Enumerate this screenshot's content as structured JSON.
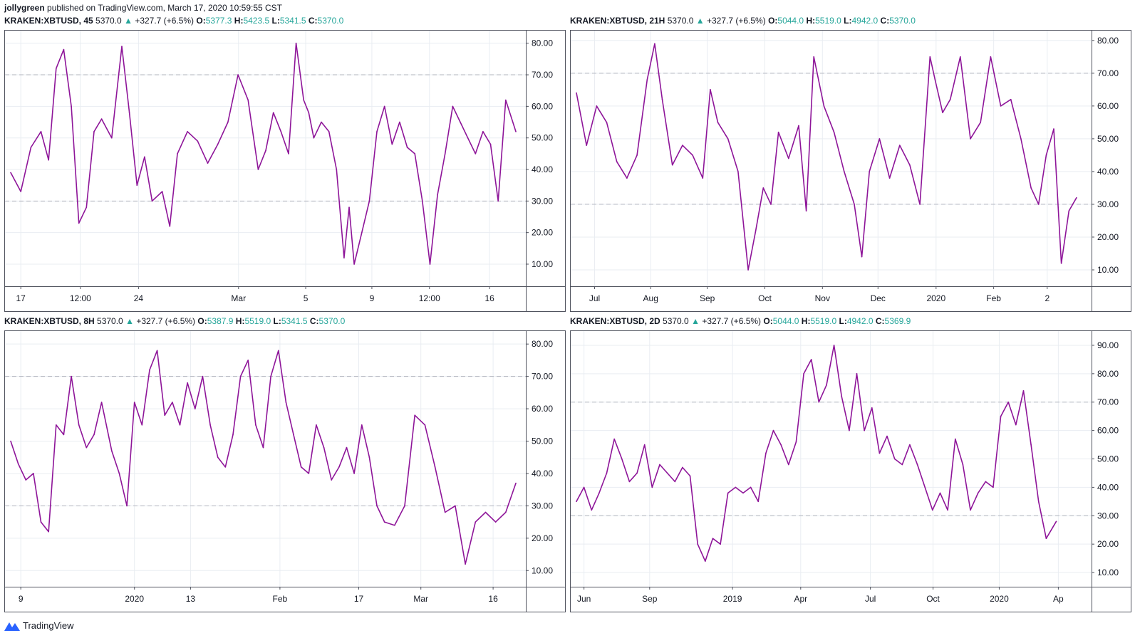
{
  "header": {
    "author": "jollygreen",
    "published": "published on TradingView.com, March 17, 2020 10:59:55 CST"
  },
  "footer": {
    "brand": "TradingView"
  },
  "colors": {
    "line": "#8e1599",
    "grid": "#e9edf2",
    "ref": "#b2b5be",
    "up": "#26a69a"
  },
  "panels": [
    {
      "symbol": "KRAKEN:XBTUSD, 45",
      "last": "5370.0",
      "arrow": "▲",
      "change": "+327.7 (+6.5%)",
      "o": "5377.3",
      "h": "5423.5",
      "l": "5341.5",
      "c": "5370.0"
    },
    {
      "symbol": "KRAKEN:XBTUSD, 21H",
      "last": "5370.0",
      "arrow": "▲",
      "change": "+327.7 (+6.5%)",
      "o": "5044.0",
      "h": "5519.0",
      "l": "4942.0",
      "c": "5370.0"
    },
    {
      "symbol": "KRAKEN:XBTUSD, 8H",
      "last": "5370.0",
      "arrow": "▲",
      "change": "+327.7 (+6.5%)",
      "o": "5387.9",
      "h": "5519.0",
      "l": "5341.5",
      "c": "5370.0"
    },
    {
      "symbol": "KRAKEN:XBTUSD, 2D",
      "last": "5370.0",
      "arrow": "▲",
      "change": "+327.7 (+6.5%)",
      "o": "5044.0",
      "h": "5519.0",
      "l": "4942.0",
      "c": "5369.9"
    }
  ],
  "chart_data": [
    {
      "type": "line",
      "ylim": [
        3,
        84
      ],
      "yticks": [
        10,
        20,
        30,
        40,
        50,
        60,
        70,
        80
      ],
      "ytick_labels": [
        "10.00",
        "20.00",
        "30.00",
        "40.00",
        "50.00",
        "60.00",
        "70.00",
        "80.00"
      ],
      "ref_lines": [
        30,
        70
      ],
      "xticks": [
        {
          "label": "17",
          "x": 0.02
        },
        {
          "label": "12:00",
          "x": 0.138
        },
        {
          "label": "24",
          "x": 0.253
        },
        {
          "label": "Mar",
          "x": 0.451
        },
        {
          "label": "5",
          "x": 0.584
        },
        {
          "label": "9",
          "x": 0.715
        },
        {
          "label": "12:00",
          "x": 0.829
        },
        {
          "label": "16",
          "x": 0.948
        }
      ],
      "x": [
        0,
        0.02,
        0.04,
        0.06,
        0.075,
        0.09,
        0.105,
        0.12,
        0.135,
        0.15,
        0.165,
        0.18,
        0.2,
        0.22,
        0.235,
        0.25,
        0.265,
        0.28,
        0.3,
        0.315,
        0.33,
        0.35,
        0.37,
        0.39,
        0.41,
        0.43,
        0.45,
        0.47,
        0.49,
        0.505,
        0.52,
        0.535,
        0.55,
        0.565,
        0.58,
        0.59,
        0.6,
        0.615,
        0.63,
        0.645,
        0.66,
        0.67,
        0.68,
        0.695,
        0.71,
        0.725,
        0.74,
        0.755,
        0.77,
        0.785,
        0.8,
        0.815,
        0.83,
        0.845,
        0.86,
        0.875,
        0.89,
        0.905,
        0.92,
        0.935,
        0.95,
        0.965,
        0.98,
        1
      ],
      "values": [
        39,
        33,
        47,
        52,
        43,
        72,
        78,
        60,
        23,
        28,
        52,
        56,
        50,
        79,
        58,
        35,
        44,
        30,
        33,
        22,
        45,
        52,
        49,
        42,
        48,
        55,
        70,
        62,
        40,
        46,
        58,
        52,
        45,
        80,
        62,
        58,
        50,
        55,
        52,
        40,
        12,
        28,
        10,
        20,
        30,
        52,
        60,
        48,
        55,
        47,
        45,
        30,
        10,
        32,
        45,
        60,
        55,
        50,
        45,
        52,
        48,
        30,
        62,
        52
      ]
    },
    {
      "type": "line",
      "ylim": [
        5,
        83
      ],
      "yticks": [
        10,
        20,
        30,
        40,
        50,
        60,
        70,
        80
      ],
      "ytick_labels": [
        "10.00",
        "20.00",
        "30.00",
        "40.00",
        "50.00",
        "60.00",
        "70.00",
        "80.00"
      ],
      "ref_lines": [
        30,
        70
      ],
      "xticks": [
        {
          "label": "Jul",
          "x": 0.036
        },
        {
          "label": "Aug",
          "x": 0.147
        },
        {
          "label": "Sep",
          "x": 0.259
        },
        {
          "label": "Oct",
          "x": 0.373
        },
        {
          "label": "Nov",
          "x": 0.487
        },
        {
          "label": "Dec",
          "x": 0.597
        },
        {
          "label": "2020",
          "x": 0.712
        },
        {
          "label": "Feb",
          "x": 0.826
        },
        {
          "label": "2",
          "x": 0.932
        }
      ],
      "x": [
        0,
        0.02,
        0.04,
        0.06,
        0.08,
        0.1,
        0.12,
        0.14,
        0.155,
        0.17,
        0.19,
        0.21,
        0.23,
        0.25,
        0.265,
        0.28,
        0.3,
        0.32,
        0.34,
        0.355,
        0.37,
        0.385,
        0.4,
        0.42,
        0.44,
        0.455,
        0.47,
        0.49,
        0.51,
        0.53,
        0.55,
        0.565,
        0.58,
        0.6,
        0.62,
        0.64,
        0.66,
        0.68,
        0.7,
        0.71,
        0.725,
        0.74,
        0.76,
        0.78,
        0.8,
        0.82,
        0.84,
        0.86,
        0.88,
        0.9,
        0.915,
        0.93,
        0.945,
        0.96,
        0.975,
        0.99
      ],
      "values": [
        64,
        48,
        60,
        55,
        43,
        38,
        45,
        68,
        79,
        62,
        42,
        48,
        45,
        38,
        65,
        55,
        50,
        40,
        10,
        22,
        35,
        30,
        52,
        44,
        54,
        28,
        75,
        60,
        52,
        40,
        30,
        14,
        40,
        50,
        38,
        48,
        42,
        30,
        75,
        68,
        58,
        62,
        75,
        50,
        55,
        75,
        60,
        62,
        50,
        35,
        30,
        45,
        53,
        12,
        28,
        32
      ]
    },
    {
      "type": "line",
      "ylim": [
        5,
        84
      ],
      "yticks": [
        10,
        20,
        30,
        40,
        50,
        60,
        70,
        80
      ],
      "ytick_labels": [
        "10.00",
        "20.00",
        "30.00",
        "40.00",
        "50.00",
        "60.00",
        "70.00",
        "80.00"
      ],
      "ref_lines": [
        30,
        70
      ],
      "xticks": [
        {
          "label": "9",
          "x": 0.02
        },
        {
          "label": "2020",
          "x": 0.245
        },
        {
          "label": "13",
          "x": 0.356
        },
        {
          "label": "Feb",
          "x": 0.533
        },
        {
          "label": "17",
          "x": 0.689
        },
        {
          "label": "Mar",
          "x": 0.812
        },
        {
          "label": "16",
          "x": 0.955
        }
      ],
      "x": [
        0,
        0.015,
        0.03,
        0.045,
        0.06,
        0.075,
        0.09,
        0.105,
        0.12,
        0.135,
        0.15,
        0.165,
        0.18,
        0.2,
        0.215,
        0.23,
        0.245,
        0.26,
        0.275,
        0.29,
        0.305,
        0.32,
        0.335,
        0.35,
        0.365,
        0.38,
        0.395,
        0.41,
        0.425,
        0.44,
        0.455,
        0.47,
        0.485,
        0.5,
        0.515,
        0.53,
        0.545,
        0.56,
        0.575,
        0.59,
        0.605,
        0.62,
        0.635,
        0.65,
        0.665,
        0.68,
        0.695,
        0.71,
        0.725,
        0.74,
        0.76,
        0.78,
        0.8,
        0.82,
        0.84,
        0.86,
        0.88,
        0.9,
        0.92,
        0.94,
        0.96,
        0.98,
        1
      ],
      "values": [
        50,
        43,
        38,
        40,
        25,
        22,
        55,
        52,
        70,
        55,
        48,
        52,
        62,
        47,
        40,
        30,
        62,
        55,
        72,
        78,
        58,
        62,
        55,
        68,
        60,
        70,
        55,
        45,
        42,
        52,
        70,
        75,
        55,
        48,
        70,
        78,
        62,
        52,
        42,
        40,
        55,
        48,
        38,
        42,
        48,
        40,
        55,
        45,
        30,
        25,
        24,
        30,
        58,
        55,
        42,
        28,
        30,
        12,
        25,
        28,
        25,
        28,
        37
      ]
    },
    {
      "type": "line",
      "ylim": [
        5,
        95
      ],
      "yticks": [
        10,
        20,
        30,
        40,
        50,
        60,
        70,
        80,
        90
      ],
      "ytick_labels": [
        "10.00",
        "20.00",
        "30.00",
        "40.00",
        "50.00",
        "60.00",
        "70.00",
        "80.00",
        "90.00"
      ],
      "ref_lines": [
        30,
        70
      ],
      "xticks": [
        {
          "label": "Jun",
          "x": 0.015
        },
        {
          "label": "Sep",
          "x": 0.145
        },
        {
          "label": "2019",
          "x": 0.309
        },
        {
          "label": "Apr",
          "x": 0.444
        },
        {
          "label": "Jul",
          "x": 0.582
        },
        {
          "label": "Oct",
          "x": 0.706
        },
        {
          "label": "2020",
          "x": 0.837
        },
        {
          "label": "Ap",
          "x": 0.954
        }
      ],
      "x": [
        0,
        0.015,
        0.03,
        0.045,
        0.06,
        0.075,
        0.09,
        0.105,
        0.12,
        0.135,
        0.15,
        0.165,
        0.18,
        0.195,
        0.21,
        0.225,
        0.24,
        0.255,
        0.27,
        0.285,
        0.3,
        0.315,
        0.33,
        0.345,
        0.36,
        0.375,
        0.39,
        0.405,
        0.42,
        0.435,
        0.45,
        0.465,
        0.48,
        0.495,
        0.51,
        0.525,
        0.54,
        0.555,
        0.57,
        0.585,
        0.6,
        0.615,
        0.63,
        0.645,
        0.66,
        0.675,
        0.69,
        0.705,
        0.72,
        0.735,
        0.75,
        0.765,
        0.78,
        0.795,
        0.81,
        0.825,
        0.84,
        0.855,
        0.87,
        0.885,
        0.9,
        0.915,
        0.93,
        0.95
      ],
      "values": [
        35,
        40,
        32,
        38,
        45,
        57,
        50,
        42,
        45,
        55,
        40,
        48,
        45,
        42,
        47,
        44,
        20,
        14,
        22,
        20,
        38,
        40,
        38,
        40,
        35,
        52,
        60,
        55,
        48,
        56,
        80,
        85,
        70,
        76,
        90,
        72,
        60,
        80,
        60,
        68,
        52,
        58,
        50,
        48,
        55,
        48,
        40,
        32,
        38,
        32,
        57,
        48,
        32,
        38,
        42,
        40,
        65,
        70,
        62,
        74,
        55,
        35,
        22,
        28
      ]
    }
  ]
}
